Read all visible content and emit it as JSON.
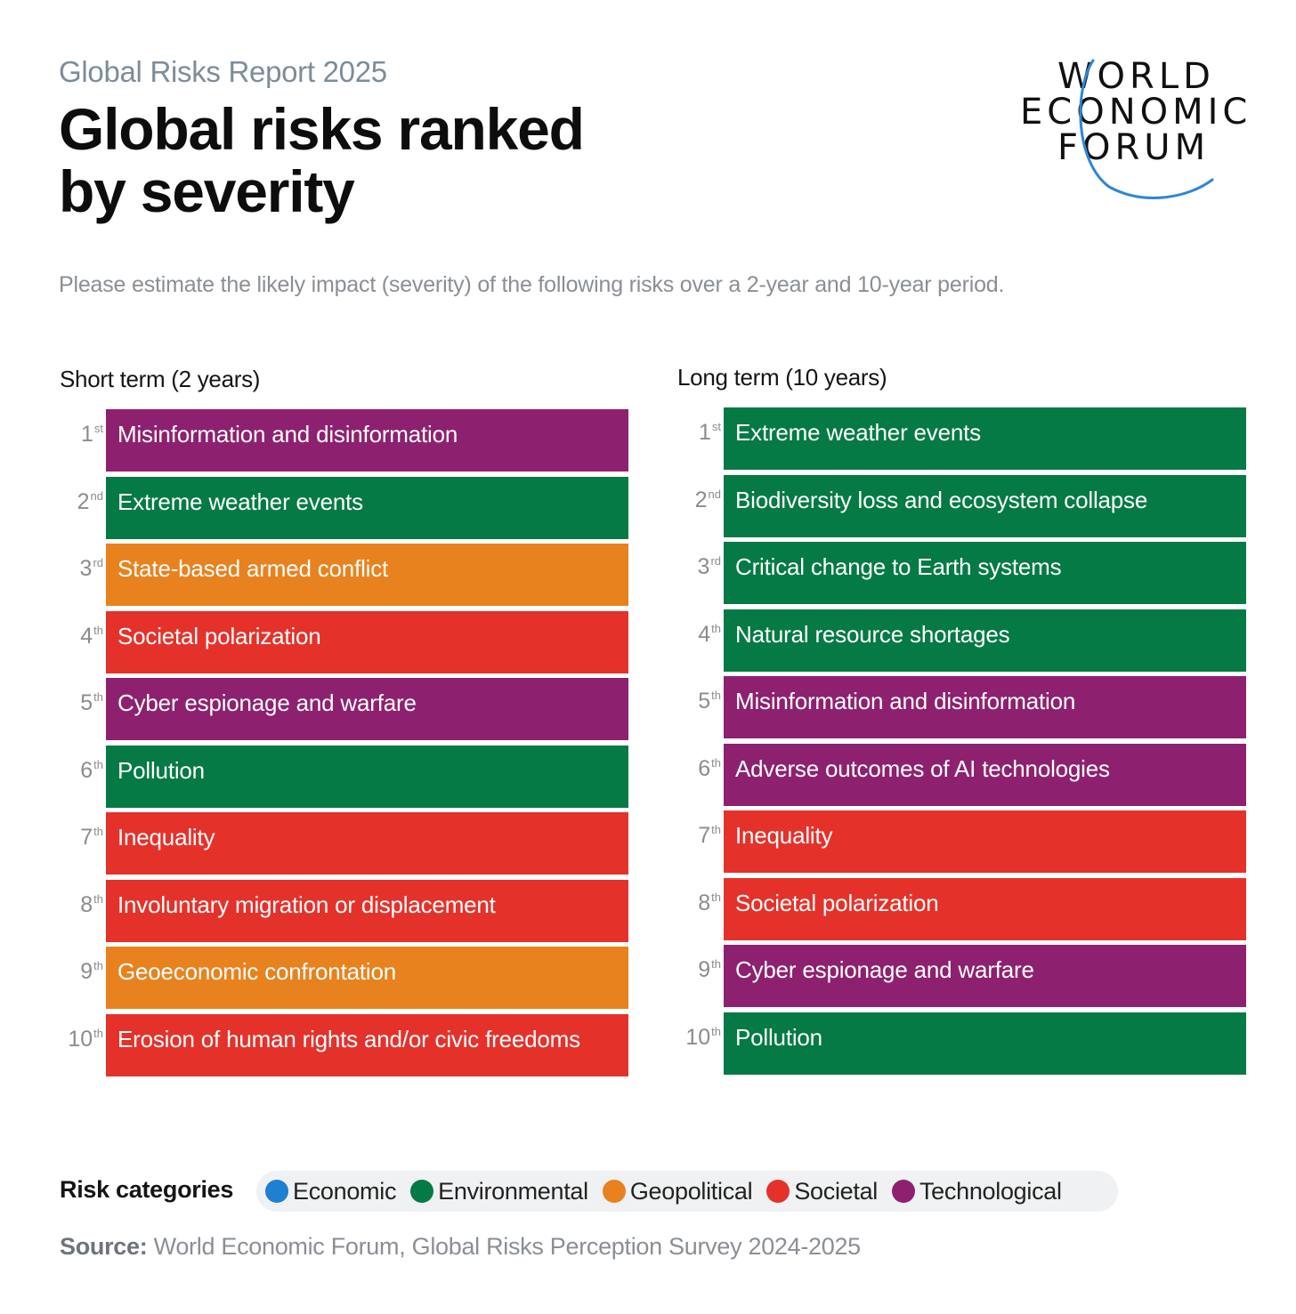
{
  "header": {
    "report_label": "Global Risks Report 2025",
    "title_line1": "Global risks ranked",
    "title_line2": "by severity",
    "logo_line1": "WORLD",
    "logo_line2": "ECONOMIC",
    "logo_line3": "FORUM",
    "subtitle": "Please estimate the likely impact (severity) of the following risks over a 2-year and 10-year period."
  },
  "colors": {
    "Economic": "#1f7fd1",
    "Environmental": "#057a45",
    "Geopolitical": "#e8821e",
    "Societal": "#e4322b",
    "Technological": "#8d2170",
    "logo_arc": "#2f86d6"
  },
  "chart_data": {
    "type": "table",
    "title": "Global risks ranked by severity",
    "columns": [
      {
        "title": "Short term (2 years)",
        "ranks": [
          {
            "rank": "1",
            "suffix": "st",
            "risk": "Misinformation and disinformation",
            "category": "Technological"
          },
          {
            "rank": "2",
            "suffix": "nd",
            "risk": "Extreme weather events",
            "category": "Environmental"
          },
          {
            "rank": "3",
            "suffix": "rd",
            "risk": "State-based armed conflict",
            "category": "Geopolitical"
          },
          {
            "rank": "4",
            "suffix": "th",
            "risk": "Societal polarization",
            "category": "Societal"
          },
          {
            "rank": "5",
            "suffix": "th",
            "risk": "Cyber espionage and warfare",
            "category": "Technological"
          },
          {
            "rank": "6",
            "suffix": "th",
            "risk": "Pollution",
            "category": "Environmental"
          },
          {
            "rank": "7",
            "suffix": "th",
            "risk": "Inequality",
            "category": "Societal"
          },
          {
            "rank": "8",
            "suffix": "th",
            "risk": "Involuntary migration or displacement",
            "category": "Societal"
          },
          {
            "rank": "9",
            "suffix": "th",
            "risk": "Geoeconomic confrontation",
            "category": "Geopolitical"
          },
          {
            "rank": "10",
            "suffix": "th",
            "risk": "Erosion of human rights and/or civic freedoms",
            "category": "Societal"
          }
        ]
      },
      {
        "title": "Long term (10 years)",
        "ranks": [
          {
            "rank": "1",
            "suffix": "st",
            "risk": "Extreme weather events",
            "category": "Environmental"
          },
          {
            "rank": "2",
            "suffix": "nd",
            "risk": "Biodiversity loss and ecosystem collapse",
            "category": "Environmental"
          },
          {
            "rank": "3",
            "suffix": "rd",
            "risk": "Critical change to Earth systems",
            "category": "Environmental"
          },
          {
            "rank": "4",
            "suffix": "th",
            "risk": "Natural resource shortages",
            "category": "Environmental"
          },
          {
            "rank": "5",
            "suffix": "th",
            "risk": "Misinformation and disinformation",
            "category": "Technological"
          },
          {
            "rank": "6",
            "suffix": "th",
            "risk": "Adverse outcomes of AI technologies",
            "category": "Technological"
          },
          {
            "rank": "7",
            "suffix": "th",
            "risk": "Inequality",
            "category": "Societal"
          },
          {
            "rank": "8",
            "suffix": "th",
            "risk": "Societal polarization",
            "category": "Societal"
          },
          {
            "rank": "9",
            "suffix": "th",
            "risk": "Cyber espionage and warfare",
            "category": "Technological"
          },
          {
            "rank": "10",
            "suffix": "th",
            "risk": "Pollution",
            "category": "Environmental"
          }
        ]
      }
    ]
  },
  "legend": {
    "title": "Risk categories",
    "items": [
      "Economic",
      "Environmental",
      "Geopolitical",
      "Societal",
      "Technological"
    ]
  },
  "source": {
    "label": "Source:",
    "text": "World Economic Forum, Global Risks Perception Survey 2024-2025"
  }
}
